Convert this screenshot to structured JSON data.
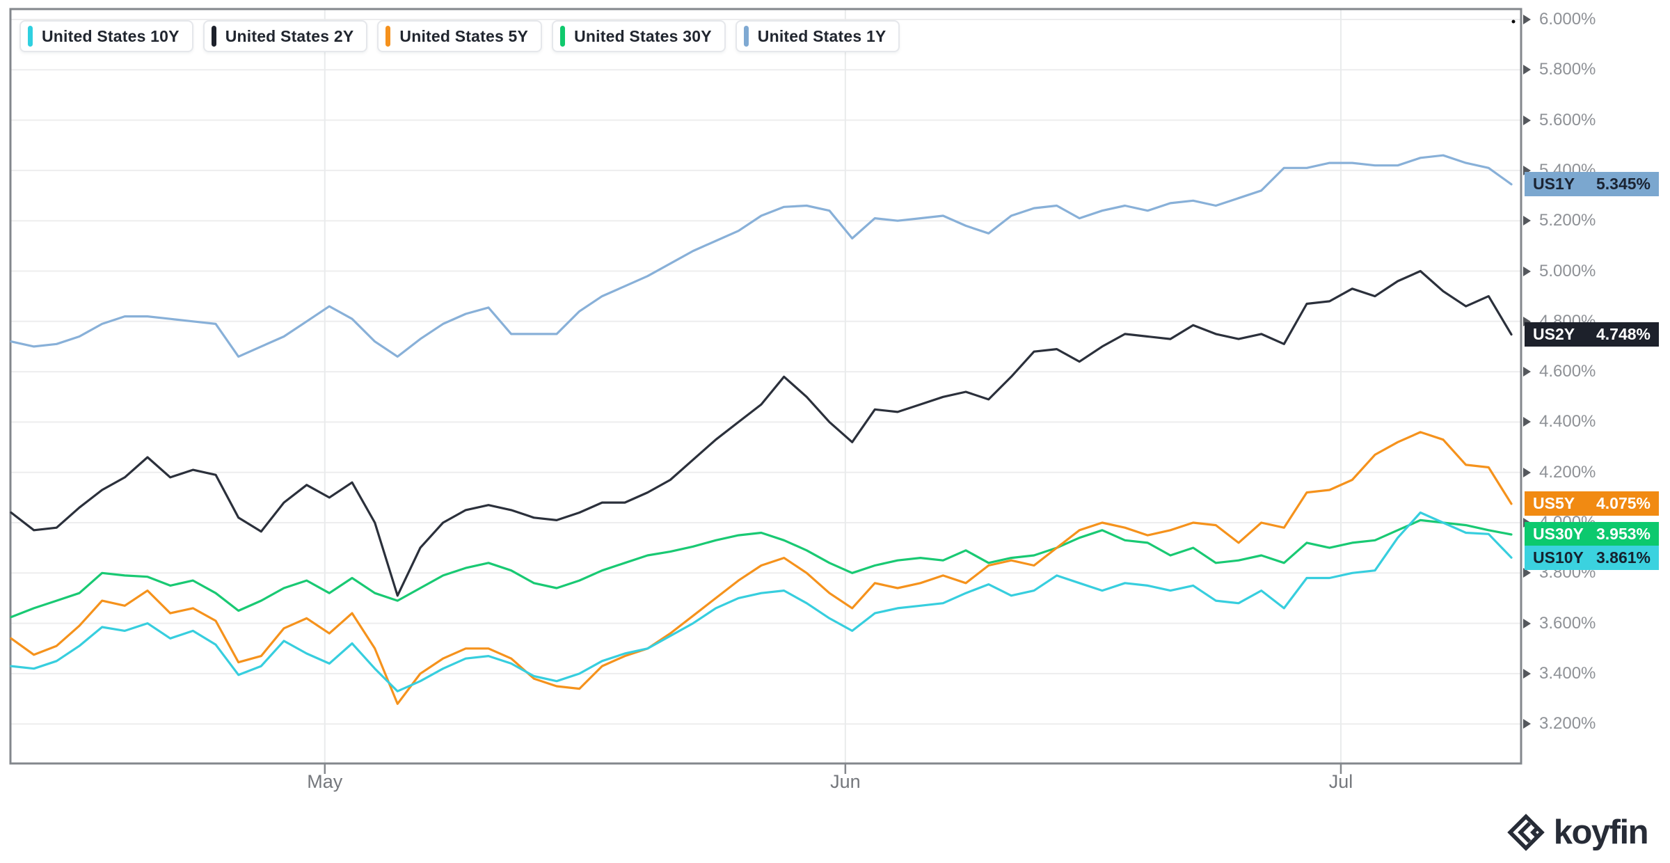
{
  "branding": {
    "logo_text": "koyfin"
  },
  "legend": [
    {
      "id": "us10y",
      "label": "United States 10Y",
      "color": "#2fd0e0"
    },
    {
      "id": "us2y",
      "label": "United States 2Y",
      "color": "#1d212b"
    },
    {
      "id": "us5y",
      "label": "United States 5Y",
      "color": "#f5911c"
    },
    {
      "id": "us30y",
      "label": "United States 30Y",
      "color": "#10c96d"
    },
    {
      "id": "us1y",
      "label": "United States 1Y",
      "color": "#7fa9d2"
    }
  ],
  "chart_data": {
    "type": "line",
    "grid": true,
    "legend_position": "top-left",
    "ylim": [
      3.043,
      6.04
    ],
    "y_ticks": [
      {
        "value": 6.0,
        "label": "6.000%"
      },
      {
        "value": 5.8,
        "label": "5.800%"
      },
      {
        "value": 5.6,
        "label": "5.600%"
      },
      {
        "value": 5.4,
        "label": "5.400%"
      },
      {
        "value": 5.2,
        "label": "5.200%"
      },
      {
        "value": 5.0,
        "label": "5.000%"
      },
      {
        "value": 4.8,
        "label": "4.800%"
      },
      {
        "value": 4.6,
        "label": "4.600%"
      },
      {
        "value": 4.4,
        "label": "4.400%"
      },
      {
        "value": 4.2,
        "label": "4.200%"
      },
      {
        "value": 4.0,
        "label": "4.000%"
      },
      {
        "value": 3.8,
        "label": "3.800%"
      },
      {
        "value": 3.6,
        "label": "3.600%"
      },
      {
        "value": 3.4,
        "label": "3.400%"
      },
      {
        "value": 3.2,
        "label": "3.200%"
      }
    ],
    "x_ticks": [
      {
        "label": "May",
        "index": 13.8
      },
      {
        "label": "Jun",
        "index": 36.7
      },
      {
        "label": "Jul",
        "index": 58.5
      }
    ],
    "badges": [
      {
        "series": "us1y",
        "label": "US1Y",
        "value": 5.345,
        "value_label": "5.345%",
        "bg": "#7ba7cf",
        "fg": "#1b2433"
      },
      {
        "series": "us2y",
        "label": "US2Y",
        "value": 4.748,
        "value_label": "4.748%",
        "bg": "#1d212b",
        "fg": "#ffffff"
      },
      {
        "series": "us5y",
        "label": "US5Y",
        "value": 4.075,
        "value_label": "4.075%",
        "bg": "#f18a12",
        "fg": "#ffffff"
      },
      {
        "series": "us30y",
        "label": "US30Y",
        "value": 3.953,
        "value_label": "3.953%",
        "bg": "#0cc96e",
        "fg": "#ffffff"
      },
      {
        "series": "us10y",
        "label": "US10Y",
        "value": 3.861,
        "value_label": "3.861%",
        "bg": "#3bd2df",
        "fg": "#16222f"
      }
    ],
    "series": [
      {
        "id": "us1y",
        "name": "United States 1Y",
        "color": "#88b0d8",
        "values": [
          4.72,
          4.7,
          4.71,
          4.74,
          4.79,
          4.82,
          4.82,
          4.81,
          4.8,
          4.79,
          4.66,
          4.7,
          4.74,
          4.8,
          4.86,
          4.81,
          4.72,
          4.66,
          4.73,
          4.79,
          4.83,
          4.855,
          4.75,
          4.75,
          4.75,
          4.84,
          4.9,
          4.94,
          4.98,
          5.03,
          5.08,
          5.12,
          5.16,
          5.22,
          5.255,
          5.26,
          5.24,
          5.13,
          5.21,
          5.2,
          5.21,
          5.22,
          5.18,
          5.15,
          5.22,
          5.25,
          5.26,
          5.21,
          5.24,
          5.26,
          5.24,
          5.27,
          5.28,
          5.26,
          5.29,
          5.32,
          5.41,
          5.41,
          5.43,
          5.43,
          5.42,
          5.42,
          5.45,
          5.46,
          5.43,
          5.41,
          5.345
        ]
      },
      {
        "id": "us2y",
        "name": "United States 2Y",
        "color": "#2b303b",
        "values": [
          4.04,
          3.97,
          3.98,
          4.06,
          4.13,
          4.18,
          4.26,
          4.18,
          4.21,
          4.19,
          4.02,
          3.965,
          4.08,
          4.15,
          4.1,
          4.16,
          4.0,
          3.71,
          3.9,
          4.0,
          4.05,
          4.07,
          4.05,
          4.02,
          4.01,
          4.04,
          4.08,
          4.08,
          4.12,
          4.17,
          4.25,
          4.33,
          4.4,
          4.47,
          4.58,
          4.5,
          4.4,
          4.32,
          4.45,
          4.44,
          4.47,
          4.5,
          4.52,
          4.49,
          4.58,
          4.68,
          4.69,
          4.64,
          4.7,
          4.75,
          4.74,
          4.73,
          4.785,
          4.75,
          4.73,
          4.75,
          4.71,
          4.87,
          4.88,
          4.93,
          4.9,
          4.96,
          5.0,
          4.92,
          4.86,
          4.9,
          4.748
        ]
      },
      {
        "id": "us30y",
        "name": "United States 30Y",
        "color": "#19c973",
        "values": [
          3.625,
          3.66,
          3.69,
          3.72,
          3.8,
          3.79,
          3.785,
          3.75,
          3.77,
          3.72,
          3.65,
          3.69,
          3.74,
          3.77,
          3.72,
          3.78,
          3.72,
          3.69,
          3.74,
          3.79,
          3.82,
          3.84,
          3.81,
          3.76,
          3.74,
          3.77,
          3.81,
          3.84,
          3.87,
          3.885,
          3.905,
          3.93,
          3.95,
          3.96,
          3.93,
          3.89,
          3.84,
          3.8,
          3.83,
          3.85,
          3.86,
          3.85,
          3.89,
          3.84,
          3.86,
          3.87,
          3.9,
          3.94,
          3.97,
          3.93,
          3.92,
          3.87,
          3.9,
          3.84,
          3.85,
          3.87,
          3.84,
          3.92,
          3.9,
          3.92,
          3.93,
          3.97,
          4.01,
          4.0,
          3.99,
          3.97,
          3.953
        ]
      },
      {
        "id": "us5y",
        "name": "United States 5Y",
        "color": "#f5921c",
        "values": [
          3.54,
          3.475,
          3.51,
          3.59,
          3.69,
          3.67,
          3.73,
          3.64,
          3.66,
          3.61,
          3.445,
          3.47,
          3.58,
          3.62,
          3.56,
          3.64,
          3.5,
          3.28,
          3.4,
          3.46,
          3.5,
          3.5,
          3.46,
          3.38,
          3.35,
          3.34,
          3.43,
          3.47,
          3.5,
          3.56,
          3.63,
          3.7,
          3.77,
          3.83,
          3.86,
          3.8,
          3.72,
          3.66,
          3.76,
          3.74,
          3.76,
          3.79,
          3.76,
          3.83,
          3.85,
          3.83,
          3.9,
          3.97,
          4.0,
          3.98,
          3.95,
          3.97,
          4.0,
          3.99,
          3.92,
          4.0,
          3.98,
          4.12,
          4.13,
          4.17,
          4.27,
          4.32,
          4.36,
          4.33,
          4.23,
          4.22,
          4.075
        ]
      },
      {
        "id": "us10y",
        "name": "United States 10Y",
        "color": "#37cede",
        "values": [
          3.43,
          3.42,
          3.45,
          3.51,
          3.585,
          3.57,
          3.6,
          3.54,
          3.57,
          3.515,
          3.395,
          3.43,
          3.53,
          3.48,
          3.44,
          3.52,
          3.42,
          3.33,
          3.37,
          3.42,
          3.46,
          3.47,
          3.44,
          3.39,
          3.37,
          3.4,
          3.45,
          3.48,
          3.5,
          3.55,
          3.6,
          3.66,
          3.7,
          3.72,
          3.73,
          3.68,
          3.62,
          3.57,
          3.64,
          3.66,
          3.67,
          3.68,
          3.72,
          3.755,
          3.71,
          3.73,
          3.79,
          3.76,
          3.73,
          3.76,
          3.75,
          3.73,
          3.75,
          3.69,
          3.68,
          3.73,
          3.66,
          3.78,
          3.78,
          3.8,
          3.81,
          3.94,
          4.04,
          4.0,
          3.96,
          3.955,
          3.861
        ]
      }
    ]
  }
}
